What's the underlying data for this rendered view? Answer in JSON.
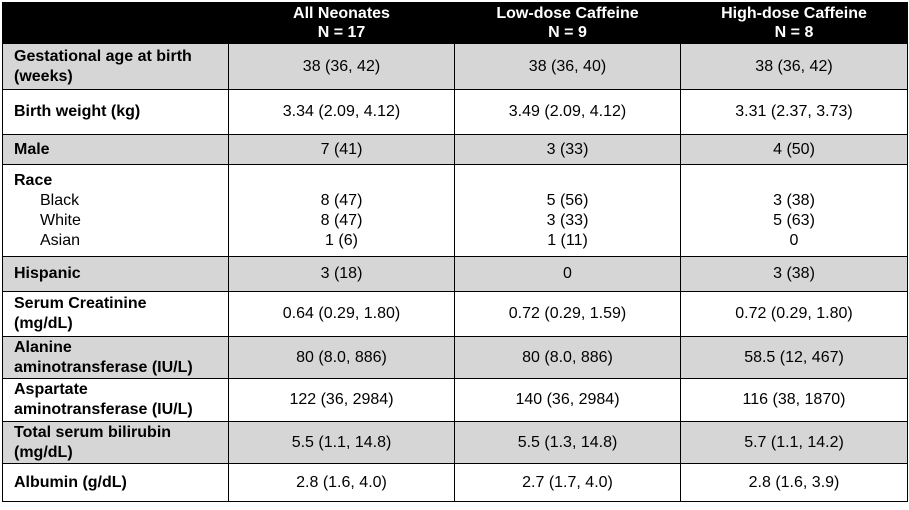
{
  "columns": [
    {
      "title": "All Neonates",
      "n": "N = 17"
    },
    {
      "title": "Low-dose Caffeine",
      "n": "N = 9"
    },
    {
      "title": "High-dose Caffeine",
      "n": "N = 8"
    }
  ],
  "rows": {
    "gest_age": {
      "label_1": "Gestational age at birth",
      "label_2": "(weeks)",
      "v": [
        "38 (36, 42)",
        "38 (36, 40)",
        "38 (36, 42)"
      ]
    },
    "birth_weight": {
      "label": "Birth weight (kg)",
      "v": [
        "3.34 (2.09, 4.12)",
        "3.49 (2.09, 4.12)",
        "3.31 (2.37, 3.73)"
      ]
    },
    "male": {
      "label": "Male",
      "v": [
        "7 (41)",
        "3 (33)",
        "4 (50)"
      ]
    },
    "race": {
      "label": "Race",
      "black": {
        "label": "Black",
        "v": [
          "8 (47)",
          "5 (56)",
          "3 (38)"
        ]
      },
      "white": {
        "label": "White",
        "v": [
          "8 (47)",
          "3 (33)",
          "5 (63)"
        ]
      },
      "asian": {
        "label": "Asian",
        "v": [
          "1 (6)",
          "1 (11)",
          "0"
        ]
      }
    },
    "hispanic": {
      "label": "Hispanic",
      "v": [
        "3 (18)",
        "0",
        "3 (38)"
      ]
    },
    "creatinine": {
      "label_1": "Serum Creatinine",
      "label_2": "(mg/dL)",
      "v": [
        "0.64 (0.29, 1.80)",
        "0.72 (0.29, 1.59)",
        "0.72 (0.29, 1.80)"
      ]
    },
    "alt": {
      "label_1": "Alanine",
      "label_2": "aminotransferase (IU/L)",
      "v": [
        "80 (8.0, 886)",
        "80 (8.0, 886)",
        "58.5 (12, 467)"
      ]
    },
    "ast": {
      "label_1": "Aspartate",
      "label_2": "aminotransferase (IU/L)",
      "v": [
        "122 (36, 2984)",
        "140 (36, 2984)",
        "116 (38, 1870)"
      ]
    },
    "bilirubin": {
      "label_1": "Total serum bilirubin",
      "label_2": "(mg/dL)",
      "v": [
        "5.5 (1.1, 14.8)",
        "5.5 (1.3, 14.8)",
        "5.7 (1.1, 14.2)"
      ]
    },
    "albumin": {
      "label": "Albumin (g/dL)",
      "v": [
        "2.8 (1.6, 4.0)",
        "2.7 (1.7, 4.0)",
        "2.8 (1.6, 3.9)"
      ]
    }
  }
}
